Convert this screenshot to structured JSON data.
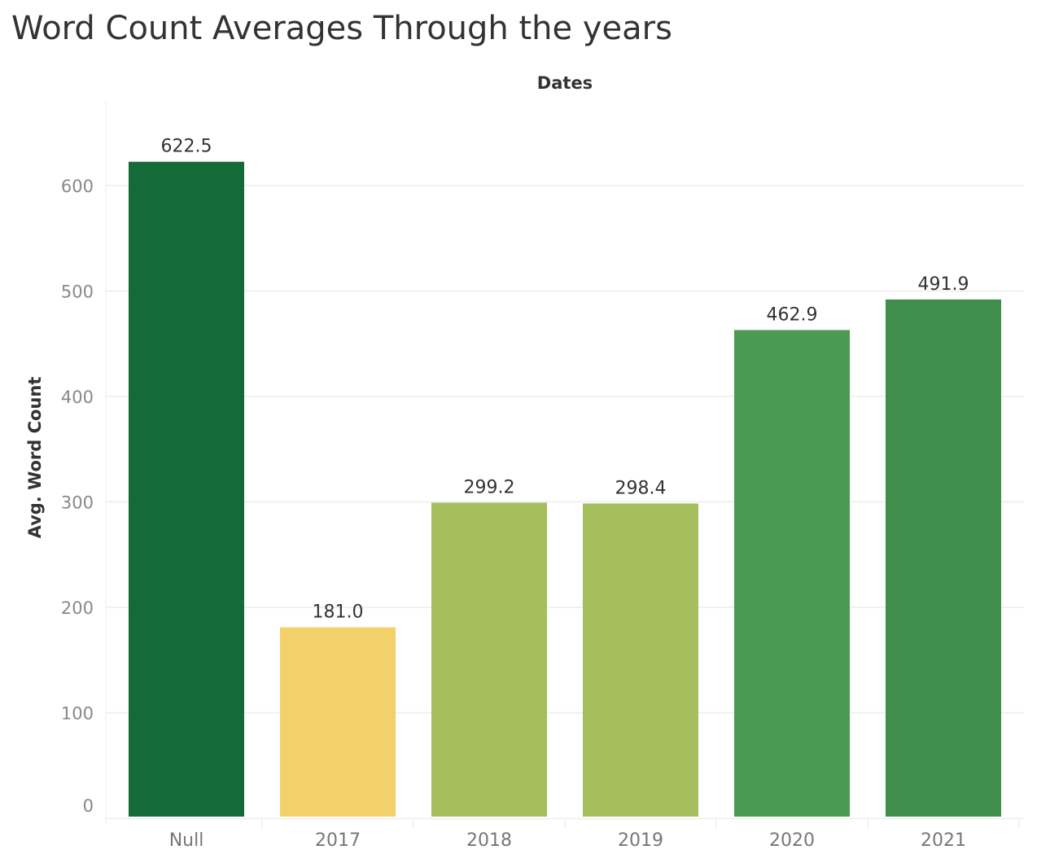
{
  "chart_data": {
    "type": "bar",
    "title": "Word Count Averages Through the years",
    "column_header": "Dates",
    "ylabel": "Avg. Word Count",
    "categories": [
      "Null",
      "2017",
      "2018",
      "2019",
      "2020",
      "2021"
    ],
    "values": [
      622.5,
      181.0,
      299.2,
      298.4,
      462.9,
      491.9
    ],
    "value_labels": [
      "622.5",
      "181.0",
      "299.2",
      "298.4",
      "462.9",
      "491.9"
    ],
    "colors": [
      "#156b38",
      "#f2d16a",
      "#a3be5b",
      "#a3be5b",
      "#4a9a54",
      "#3f8e4c"
    ],
    "ylim": [
      0,
      640
    ],
    "yticks": [
      0,
      100,
      200,
      300,
      400,
      500,
      600
    ],
    "grid": true,
    "legend": "none"
  }
}
